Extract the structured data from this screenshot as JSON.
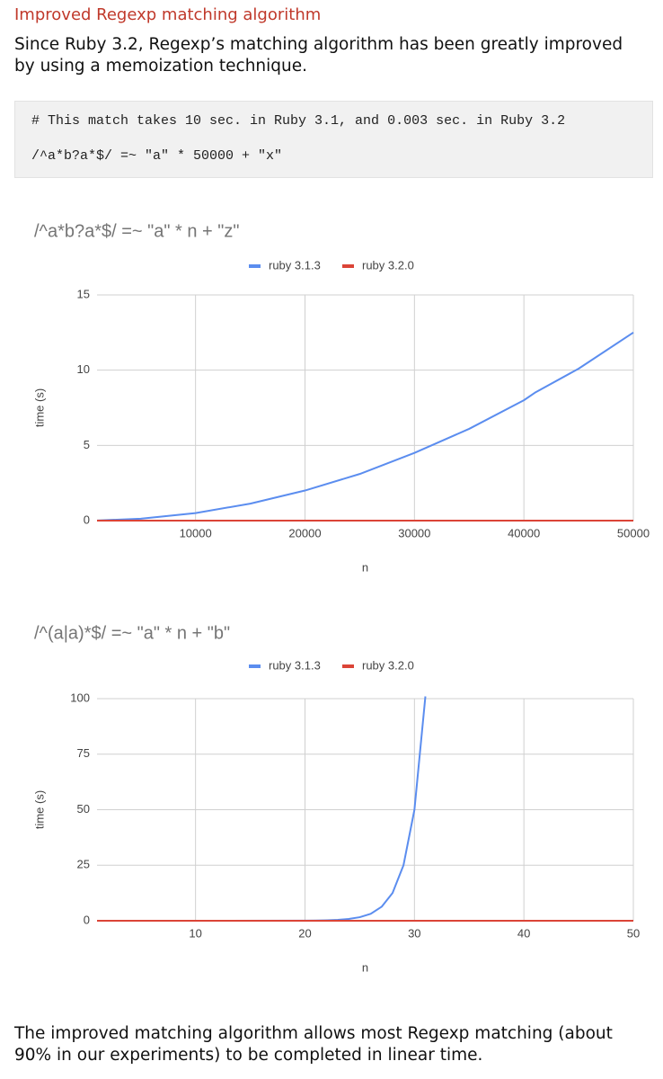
{
  "heading": "Improved Regexp matching algorithm",
  "intro": "Since Ruby 3.2, Regexp’s matching algorithm has been greatly improved by using a memoization technique.",
  "code": [
    "# This match takes 10 sec. in Ruby 3.1, and 0.003 sec. in Ruby 3.2",
    "/^a*b?a*$/ =~ \"a\" * 50000 + \"x\""
  ],
  "chart_data": [
    {
      "type": "line",
      "title": "/^a*b?a*$/ =~ \"a\" * n + \"z\"",
      "x_label": "n",
      "y_label": "time (s)",
      "xlim": [
        1000,
        50000
      ],
      "xticks": [
        10000,
        20000,
        30000,
        40000,
        50000
      ],
      "ylim": [
        0,
        15
      ],
      "yticks": [
        0,
        5,
        10,
        15
      ],
      "grid": true,
      "legend": "top",
      "series": [
        {
          "name": "ruby 3.1.3",
          "color": "#5b8def",
          "x": [
            1000,
            5000,
            10000,
            15000,
            20000,
            25000,
            30000,
            35000,
            40000,
            41000,
            45000,
            50000
          ],
          "values": [
            0.005,
            0.13,
            0.5,
            1.13,
            2,
            3.1,
            4.5,
            6.1,
            8,
            8.5,
            10.1,
            12.5
          ]
        },
        {
          "name": "ruby 3.2.0",
          "color": "#db4437",
          "x": [
            1000,
            50000
          ],
          "values": [
            0,
            0
          ]
        }
      ]
    },
    {
      "type": "line",
      "title": "/^(a|a)*$/ =~ \"a\" * n + \"b\"",
      "x_label": "n",
      "y_label": "time (s)",
      "xlim": [
        1,
        50
      ],
      "xticks": [
        10,
        20,
        30,
        40,
        50
      ],
      "ylim": [
        0,
        100
      ],
      "yticks": [
        0,
        25,
        50,
        75,
        100
      ],
      "grid": true,
      "legend": "top",
      "series": [
        {
          "name": "ruby 3.1.3",
          "color": "#5b8def",
          "x": [
            1,
            10,
            20,
            21,
            22,
            23,
            24,
            25,
            26,
            27,
            28,
            29,
            30,
            31
          ],
          "values": [
            0,
            0,
            0.05,
            0.1,
            0.2,
            0.4,
            0.8,
            1.6,
            3.1,
            6.3,
            12.5,
            25,
            50,
            101
          ]
        },
        {
          "name": "ruby 3.2.0",
          "color": "#db4437",
          "x": [
            1,
            50
          ],
          "values": [
            0,
            0
          ]
        }
      ]
    }
  ],
  "outro": "The improved matching algorithm allows most Regexp matching (about 90% in our experiments) to be completed in linear time."
}
